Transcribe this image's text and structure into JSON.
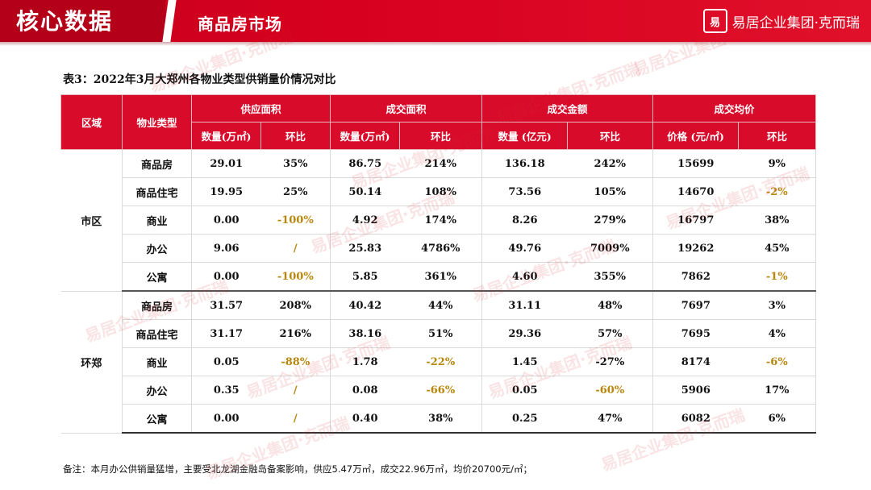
{
  "header": {
    "main_title": "核心数据",
    "sub_title": "商品房市场",
    "brand_mark": "易",
    "brand_name": "易居企业集团·克而瑞"
  },
  "caption": "表3：2022年3月大郑州各物业类型供销量价情况对比",
  "columns": {
    "region": "区域",
    "type": "物业类型",
    "groups": [
      "供应面积",
      "成交面积",
      "成交金额",
      "成交均价"
    ],
    "sub": [
      "数量(万㎡)",
      "环比",
      "数量(万㎡)",
      "环比",
      "数量 (亿元)",
      "环比",
      "价格 (元/㎡)",
      "环比"
    ]
  },
  "regions": [
    {
      "name": "市区",
      "rows": [
        {
          "type": "商品房",
          "v": [
            "29.01",
            "35%",
            "86.75",
            "214%",
            "136.18",
            "242%",
            "15699",
            "9%"
          ]
        },
        {
          "type": "商品住宅",
          "v": [
            "19.95",
            "25%",
            "50.14",
            "108%",
            "73.56",
            "105%",
            "14670",
            "-2%"
          ]
        },
        {
          "type": "商业",
          "v": [
            "0.00",
            "-100%",
            "4.92",
            "174%",
            "8.26",
            "279%",
            "16797",
            "38%"
          ]
        },
        {
          "type": "办公",
          "v": [
            "9.06",
            "/",
            "25.83",
            "4786%",
            "49.76",
            "7009%",
            "19262",
            "45%"
          ]
        },
        {
          "type": "公寓",
          "v": [
            "0.00",
            "-100%",
            "5.85",
            "361%",
            "4.60",
            "355%",
            "7862",
            "-1%"
          ]
        }
      ]
    },
    {
      "name": "环郑",
      "rows": [
        {
          "type": "商品房",
          "v": [
            "31.57",
            "208%",
            "40.42",
            "44%",
            "31.11",
            "48%",
            "7697",
            "3%"
          ]
        },
        {
          "type": "商品住宅",
          "v": [
            "31.17",
            "216%",
            "38.16",
            "51%",
            "29.36",
            "57%",
            "7695",
            "4%"
          ]
        },
        {
          "type": "商业",
          "v": [
            "0.05",
            "-88%",
            "1.78",
            "-22%",
            "1.45",
            "-27%",
            "8174",
            "-6%"
          ]
        },
        {
          "type": "办公",
          "v": [
            "0.35",
            "/",
            "0.08",
            "-66%",
            "0.05",
            "-60%",
            "5906",
            "17%"
          ]
        },
        {
          "type": "公寓",
          "v": [
            "0.00",
            "/",
            "0.40",
            "38%",
            "0.25",
            "47%",
            "6082",
            "6%"
          ]
        }
      ]
    }
  ],
  "highlight_cells": [
    "r0-1-7",
    "r0-2-1",
    "r0-4-1",
    "r0-4-7",
    "r1-2-1",
    "r1-2-3",
    "r1-2-7",
    "r1-3-3",
    "r1-3-5",
    "r0-3-1",
    "r1-3-1",
    "r1-4-1"
  ],
  "note": "备注：本月办公供销量猛增，主要受北龙湖金融岛备案影响，供应5.47万㎡，成交22.96万㎡，均价20700元/㎡；",
  "watermark": "易居企业集团·克而瑞",
  "colors": {
    "header_red": "#d80c2a",
    "highlight": "#b8860b"
  }
}
